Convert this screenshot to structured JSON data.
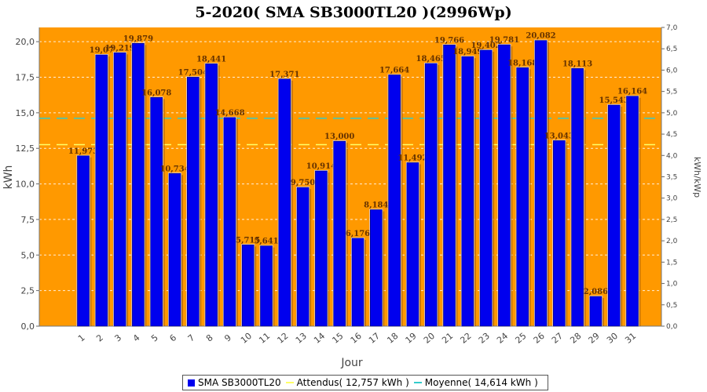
{
  "chart_data": {
    "type": "bar",
    "title": "5-2020( SMA SB3000TL20 )(2996Wp)",
    "xlabel": "Jour",
    "ylabel": "kWh",
    "y2label": "kWh/kWp",
    "ylim": [
      0,
      21.0
    ],
    "y2lim": [
      0,
      7.0
    ],
    "yticks": [
      "0,0",
      "2,5",
      "5,0",
      "7,5",
      "10,0",
      "12,5",
      "15,0",
      "17,5",
      "20,0"
    ],
    "y2ticks": [
      "0,0",
      "0,5",
      "1,0",
      "1,5",
      "2,0",
      "2,5",
      "3,0",
      "3,5",
      "4,0",
      "4,5",
      "5,0",
      "5,5",
      "6,0",
      "6,5",
      "7,0"
    ],
    "categories": [
      "1",
      "2",
      "3",
      "4",
      "5",
      "6",
      "7",
      "8",
      "9",
      "10",
      "11",
      "12",
      "13",
      "14",
      "15",
      "16",
      "17",
      "18",
      "19",
      "20",
      "21",
      "22",
      "23",
      "24",
      "25",
      "26",
      "27",
      "28",
      "29",
      "30",
      "31"
    ],
    "series": [
      {
        "name": "SMA SB3000TL20",
        "values": [
          11.973,
          19.07,
          19.219,
          19.879,
          16.078,
          10.734,
          17.504,
          18.441,
          14.668,
          5.715,
          5.641,
          17.371,
          9.75,
          10.914,
          13.0,
          6.176,
          8.184,
          17.664,
          11.492,
          18.465,
          19.766,
          18.949,
          19.402,
          19.781,
          18.168,
          20.082,
          13.043,
          18.113,
          2.086,
          15.543,
          16.164
        ],
        "labels": [
          "11,973",
          "19,07",
          "19,219",
          "19,879",
          "16,078",
          "10,734",
          "17,504",
          "18,441",
          "14,668",
          "5,715",
          "5,641",
          "17,371",
          "9,750",
          "10,914",
          "13,000",
          "6,176",
          "8,184",
          "17,664",
          "11,492",
          "18,465",
          "19,766",
          "18,949",
          "19,402",
          "19,781",
          "18,168",
          "20,082",
          "13,043",
          "18,113",
          "2,086",
          "15,543",
          "16,164"
        ]
      }
    ],
    "expected_value": 12.757,
    "average_value": 14.614,
    "grid": true,
    "legend_position": "bottom",
    "legend": {
      "items": [
        "SMA SB3000TL20",
        "Attendus( 12,757 kWh )",
        "Moyenne( 14,614 kWh )"
      ]
    },
    "colors": {
      "plot_background": "#ff9900",
      "bar": "#0000ee",
      "bar_edge": "#000066",
      "expected_line": "#ffff66",
      "average_line": "#33cccc"
    }
  }
}
